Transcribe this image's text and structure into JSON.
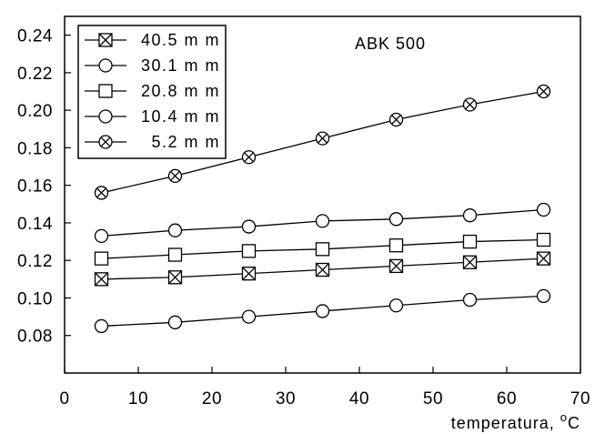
{
  "chart_data": {
    "type": "line",
    "title": "",
    "annotation": "ABK 500",
    "xlabel": "temperatura, °C",
    "ylabel": "",
    "xlim": [
      0,
      70
    ],
    "ylim": [
      0.06,
      0.25
    ],
    "x_ticks": [
      0,
      10,
      20,
      30,
      40,
      50,
      60,
      70
    ],
    "y_ticks": [
      0.08,
      0.1,
      0.12,
      0.14,
      0.16,
      0.18,
      0.2,
      0.22,
      0.24
    ],
    "x_tick_labels": [
      "0",
      "10",
      "20",
      "30",
      "40",
      "50",
      "60",
      "70"
    ],
    "y_tick_labels": [
      "0.08",
      "0.10",
      "0.12",
      "0.14",
      "0.16",
      "0.18",
      "0.20",
      "0.22",
      "0.24"
    ],
    "grid": false,
    "legend_position": "top-left",
    "x": [
      5,
      15,
      25,
      35,
      45,
      55,
      65
    ],
    "series": [
      {
        "name": "40.5 m m",
        "marker": "box-x",
        "values": [
          0.11,
          0.111,
          0.113,
          0.115,
          0.117,
          0.119,
          0.121
        ]
      },
      {
        "name": "30.1 m m",
        "marker": "circle",
        "values": [
          0.133,
          0.136,
          0.138,
          0.141,
          0.142,
          0.144,
          0.147
        ]
      },
      {
        "name": "20.8 m m",
        "marker": "square",
        "values": [
          0.121,
          0.123,
          0.125,
          0.126,
          0.128,
          0.13,
          0.131
        ]
      },
      {
        "name": "10.4 m m",
        "marker": "circle",
        "values": [
          0.085,
          0.087,
          0.09,
          0.093,
          0.096,
          0.099,
          0.101
        ]
      },
      {
        "name": "5.2 m m",
        "marker": "circle-x",
        "values": [
          0.156,
          0.165,
          0.175,
          0.185,
          0.195,
          0.203,
          0.21
        ]
      }
    ],
    "colors": {
      "line": "#000000",
      "marker_fill": "#ffffff",
      "background": "#ffffff"
    }
  }
}
